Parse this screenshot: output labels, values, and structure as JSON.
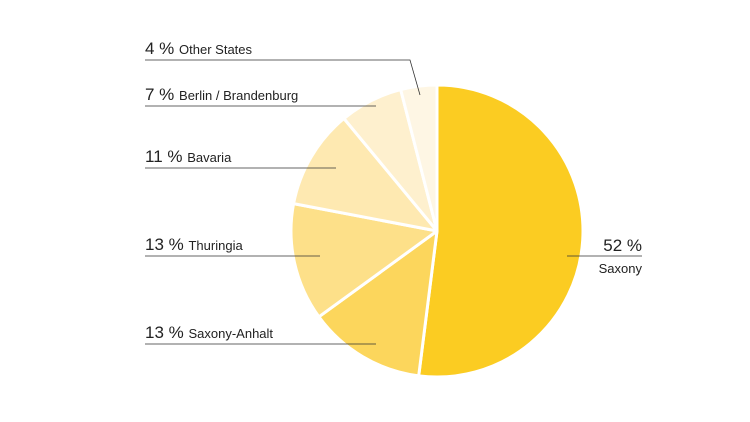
{
  "chart_data": {
    "type": "pie",
    "title": "",
    "legend": "none",
    "slices": [
      {
        "label": "Saxony",
        "value": 52,
        "value_text": "52 %",
        "color": "#FBCC22"
      },
      {
        "label": "Saxony-Anhalt",
        "value": 13,
        "value_text": "13 %",
        "color": "#FCD65C"
      },
      {
        "label": "Thuringia",
        "value": 13,
        "value_text": "13 %",
        "color": "#FDE089"
      },
      {
        "label": "Bavaria",
        "value": 11,
        "value_text": "11 %",
        "color": "#FEE9B1"
      },
      {
        "label": "Berlin / Brandenburg",
        "value": 7,
        "value_text": "7 %",
        "color": "#FEF0CE"
      },
      {
        "label": "Other States",
        "value": 4,
        "value_text": "4 %",
        "color": "#FEF6E4"
      }
    ]
  }
}
